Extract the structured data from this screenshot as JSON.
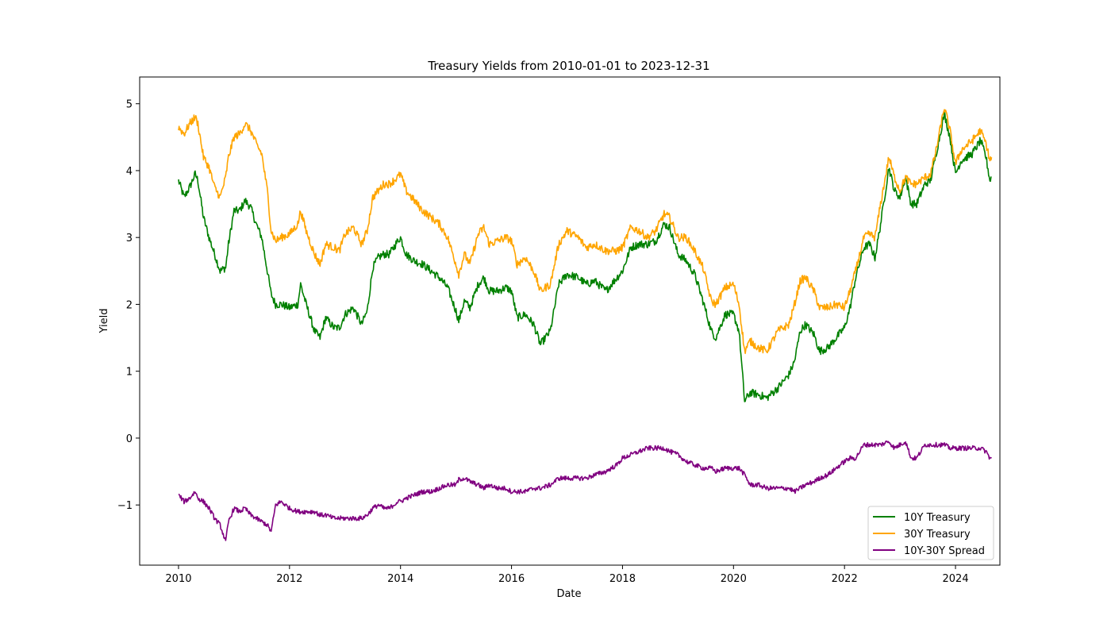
{
  "chart_data": {
    "type": "line",
    "title": "Treasury Yields from 2010-01-01 to 2023-12-31",
    "xlabel": "Date",
    "ylabel": "Yield",
    "xlim": [
      2009.3,
      2024.8
    ],
    "ylim": [
      -1.9,
      5.4
    ],
    "x_ticks": [
      2010,
      2012,
      2014,
      2016,
      2018,
      2020,
      2022,
      2024
    ],
    "y_ticks": [
      -1,
      0,
      1,
      2,
      3,
      4,
      5
    ],
    "y_tick_labels": [
      "−1",
      "0",
      "1",
      "2",
      "3",
      "4",
      "5"
    ],
    "grid": false,
    "legend_position": "lower right",
    "series": [
      {
        "name": "10Y Treasury",
        "color": "#008000",
        "x": [
          2010.0,
          2010.1,
          2010.2,
          2010.3,
          2010.35,
          2010.45,
          2010.55,
          2010.65,
          2010.75,
          2010.85,
          2010.9,
          2011.0,
          2011.1,
          2011.2,
          2011.3,
          2011.4,
          2011.5,
          2011.6,
          2011.67,
          2011.75,
          2011.85,
          2012.0,
          2012.15,
          2012.2,
          2012.3,
          2012.45,
          2012.55,
          2012.65,
          2012.8,
          2012.9,
          2013.0,
          2013.15,
          2013.3,
          2013.4,
          2013.5,
          2013.6,
          2013.7,
          2013.8,
          2013.95,
          2014.0,
          2014.1,
          2014.25,
          2014.4,
          2014.55,
          2014.7,
          2014.85,
          2015.0,
          2015.05,
          2015.15,
          2015.25,
          2015.4,
          2015.5,
          2015.6,
          2015.75,
          2015.9,
          2016.0,
          2016.1,
          2016.25,
          2016.4,
          2016.52,
          2016.7,
          2016.85,
          2017.0,
          2017.2,
          2017.35,
          2017.5,
          2017.7,
          2017.9,
          2018.0,
          2018.15,
          2018.3,
          2018.45,
          2018.6,
          2018.75,
          2018.85,
          2019.0,
          2019.15,
          2019.3,
          2019.45,
          2019.6,
          2019.68,
          2019.85,
          2020.0,
          2020.1,
          2020.2,
          2020.3,
          2020.45,
          2020.6,
          2020.8,
          2021.0,
          2021.1,
          2021.2,
          2021.3,
          2021.45,
          2021.55,
          2021.7,
          2021.85,
          2022.0,
          2022.1,
          2022.2,
          2022.35,
          2022.45,
          2022.55,
          2022.65,
          2022.8,
          2022.9,
          2023.0,
          2023.1,
          2023.2,
          2023.3,
          2023.45,
          2023.55,
          2023.65,
          2023.8,
          2023.9,
          2024.0,
          2024.1,
          2024.3,
          2024.45,
          2024.55,
          2024.62,
          2024.65
        ],
        "values": [
          3.85,
          3.6,
          3.75,
          3.95,
          3.85,
          3.3,
          3.0,
          2.75,
          2.5,
          2.55,
          2.9,
          3.4,
          3.4,
          3.55,
          3.45,
          3.2,
          3.0,
          2.5,
          2.15,
          2.0,
          2.0,
          1.95,
          2.0,
          2.3,
          2.0,
          1.6,
          1.5,
          1.8,
          1.65,
          1.65,
          1.85,
          1.95,
          1.7,
          1.9,
          2.55,
          2.7,
          2.75,
          2.75,
          2.95,
          3.0,
          2.75,
          2.65,
          2.6,
          2.5,
          2.4,
          2.25,
          1.9,
          1.75,
          2.05,
          1.95,
          2.3,
          2.4,
          2.2,
          2.2,
          2.25,
          2.2,
          1.8,
          1.85,
          1.7,
          1.4,
          1.6,
          2.3,
          2.45,
          2.4,
          2.3,
          2.35,
          2.2,
          2.4,
          2.5,
          2.85,
          2.9,
          2.9,
          2.95,
          3.2,
          3.15,
          2.75,
          2.65,
          2.45,
          2.05,
          1.6,
          1.5,
          1.85,
          1.85,
          1.6,
          0.55,
          0.68,
          0.65,
          0.6,
          0.75,
          0.95,
          1.15,
          1.6,
          1.7,
          1.55,
          1.3,
          1.35,
          1.5,
          1.65,
          1.95,
          2.4,
          2.85,
          2.9,
          2.7,
          3.2,
          4.05,
          3.7,
          3.6,
          3.9,
          3.5,
          3.5,
          3.8,
          3.85,
          4.25,
          4.85,
          4.5,
          3.95,
          4.15,
          4.25,
          4.45,
          4.2,
          3.85,
          3.9
        ]
      },
      {
        "name": "30Y Treasury",
        "color": "#FFA500",
        "x": [
          2010.0,
          2010.1,
          2010.2,
          2010.3,
          2010.35,
          2010.45,
          2010.55,
          2010.65,
          2010.75,
          2010.85,
          2010.9,
          2011.0,
          2011.1,
          2011.2,
          2011.3,
          2011.4,
          2011.5,
          2011.6,
          2011.67,
          2011.75,
          2011.85,
          2012.0,
          2012.15,
          2012.2,
          2012.3,
          2012.45,
          2012.55,
          2012.65,
          2012.8,
          2012.9,
          2013.0,
          2013.15,
          2013.3,
          2013.4,
          2013.5,
          2013.6,
          2013.7,
          2013.8,
          2013.95,
          2014.0,
          2014.1,
          2014.25,
          2014.4,
          2014.55,
          2014.7,
          2014.85,
          2015.0,
          2015.05,
          2015.15,
          2015.25,
          2015.4,
          2015.5,
          2015.6,
          2015.75,
          2015.9,
          2016.0,
          2016.1,
          2016.25,
          2016.4,
          2016.52,
          2016.7,
          2016.85,
          2017.0,
          2017.2,
          2017.35,
          2017.5,
          2017.7,
          2017.9,
          2018.0,
          2018.15,
          2018.3,
          2018.45,
          2018.6,
          2018.75,
          2018.85,
          2019.0,
          2019.15,
          2019.3,
          2019.45,
          2019.6,
          2019.68,
          2019.85,
          2020.0,
          2020.1,
          2020.2,
          2020.3,
          2020.45,
          2020.6,
          2020.8,
          2021.0,
          2021.1,
          2021.2,
          2021.3,
          2021.45,
          2021.55,
          2021.7,
          2021.85,
          2022.0,
          2022.1,
          2022.2,
          2022.35,
          2022.45,
          2022.55,
          2022.65,
          2022.8,
          2022.9,
          2023.0,
          2023.1,
          2023.2,
          2023.3,
          2023.45,
          2023.55,
          2023.65,
          2023.8,
          2023.9,
          2024.0,
          2024.1,
          2024.3,
          2024.45,
          2024.55,
          2024.62,
          2024.65
        ],
        "values": [
          4.65,
          4.55,
          4.7,
          4.8,
          4.7,
          4.2,
          4.05,
          3.75,
          3.6,
          3.9,
          4.2,
          4.5,
          4.55,
          4.7,
          4.6,
          4.4,
          4.25,
          3.7,
          3.1,
          2.95,
          3.0,
          3.05,
          3.2,
          3.4,
          3.1,
          2.75,
          2.6,
          2.9,
          2.85,
          2.8,
          3.05,
          3.15,
          2.9,
          3.1,
          3.6,
          3.7,
          3.8,
          3.8,
          3.9,
          3.95,
          3.7,
          3.55,
          3.4,
          3.3,
          3.2,
          3.0,
          2.6,
          2.45,
          2.75,
          2.6,
          3.05,
          3.15,
          2.9,
          2.95,
          3.0,
          2.95,
          2.6,
          2.7,
          2.5,
          2.2,
          2.3,
          2.9,
          3.1,
          3.0,
          2.85,
          2.9,
          2.8,
          2.8,
          2.85,
          3.15,
          3.1,
          3.0,
          3.1,
          3.35,
          3.3,
          3.0,
          3.0,
          2.8,
          2.55,
          2.05,
          2.0,
          2.25,
          2.3,
          2.0,
          1.3,
          1.45,
          1.35,
          1.3,
          1.6,
          1.7,
          2.0,
          2.35,
          2.4,
          2.2,
          1.95,
          1.95,
          2.0,
          1.95,
          2.2,
          2.5,
          3.0,
          3.05,
          3.0,
          3.5,
          4.2,
          3.9,
          3.7,
          3.9,
          3.8,
          3.8,
          3.9,
          3.95,
          4.3,
          4.95,
          4.6,
          4.1,
          4.3,
          4.45,
          4.6,
          4.4,
          4.15,
          4.2
        ]
      },
      {
        "name": "10Y-30Y Spread",
        "color": "#800080",
        "x": [
          2010.0,
          2010.1,
          2010.2,
          2010.3,
          2010.35,
          2010.45,
          2010.55,
          2010.65,
          2010.75,
          2010.85,
          2010.9,
          2011.0,
          2011.1,
          2011.2,
          2011.3,
          2011.4,
          2011.5,
          2011.6,
          2011.67,
          2011.75,
          2011.85,
          2012.0,
          2012.15,
          2012.2,
          2012.3,
          2012.45,
          2012.55,
          2012.65,
          2012.8,
          2012.9,
          2013.0,
          2013.15,
          2013.3,
          2013.4,
          2013.5,
          2013.6,
          2013.7,
          2013.8,
          2013.95,
          2014.0,
          2014.1,
          2014.25,
          2014.4,
          2014.55,
          2014.7,
          2014.85,
          2015.0,
          2015.05,
          2015.15,
          2015.25,
          2015.4,
          2015.5,
          2015.6,
          2015.75,
          2015.9,
          2016.0,
          2016.1,
          2016.25,
          2016.4,
          2016.52,
          2016.7,
          2016.85,
          2017.0,
          2017.2,
          2017.35,
          2017.5,
          2017.7,
          2017.9,
          2018.0,
          2018.15,
          2018.3,
          2018.45,
          2018.6,
          2018.75,
          2018.85,
          2019.0,
          2019.15,
          2019.3,
          2019.45,
          2019.6,
          2019.68,
          2019.85,
          2020.0,
          2020.1,
          2020.2,
          2020.3,
          2020.45,
          2020.6,
          2020.8,
          2021.0,
          2021.1,
          2021.2,
          2021.3,
          2021.45,
          2021.55,
          2021.7,
          2021.85,
          2022.0,
          2022.1,
          2022.2,
          2022.35,
          2022.45,
          2022.55,
          2022.65,
          2022.8,
          2022.9,
          2023.0,
          2023.1,
          2023.2,
          2023.3,
          2023.45,
          2023.55,
          2023.65,
          2023.8,
          2023.9,
          2024.0,
          2024.1,
          2024.3,
          2024.45,
          2024.55,
          2024.62,
          2024.65
        ],
        "values": [
          -0.85,
          -0.95,
          -0.9,
          -0.8,
          -0.9,
          -0.95,
          -1.05,
          -1.2,
          -1.3,
          -1.55,
          -1.25,
          -1.05,
          -1.1,
          -1.05,
          -1.15,
          -1.2,
          -1.25,
          -1.3,
          -1.4,
          -1.0,
          -0.95,
          -1.05,
          -1.1,
          -1.1,
          -1.1,
          -1.1,
          -1.15,
          -1.15,
          -1.2,
          -1.2,
          -1.2,
          -1.2,
          -1.2,
          -1.15,
          -1.05,
          -1.0,
          -1.05,
          -1.05,
          -0.95,
          -0.95,
          -0.9,
          -0.85,
          -0.8,
          -0.8,
          -0.75,
          -0.7,
          -0.7,
          -0.62,
          -0.6,
          -0.65,
          -0.7,
          -0.75,
          -0.7,
          -0.75,
          -0.75,
          -0.8,
          -0.8,
          -0.8,
          -0.75,
          -0.75,
          -0.7,
          -0.6,
          -0.6,
          -0.6,
          -0.6,
          -0.55,
          -0.5,
          -0.4,
          -0.3,
          -0.25,
          -0.2,
          -0.15,
          -0.15,
          -0.15,
          -0.2,
          -0.25,
          -0.35,
          -0.4,
          -0.45,
          -0.45,
          -0.5,
          -0.45,
          -0.45,
          -0.45,
          -0.55,
          -0.7,
          -0.7,
          -0.75,
          -0.75,
          -0.75,
          -0.8,
          -0.75,
          -0.7,
          -0.65,
          -0.6,
          -0.55,
          -0.45,
          -0.35,
          -0.3,
          -0.3,
          -0.1,
          -0.1,
          -0.1,
          -0.1,
          -0.05,
          -0.15,
          -0.1,
          -0.05,
          -0.3,
          -0.3,
          -0.1,
          -0.1,
          -0.1,
          -0.1,
          -0.15,
          -0.15,
          -0.15,
          -0.15,
          -0.15,
          -0.2,
          -0.3,
          -0.3
        ]
      }
    ]
  }
}
